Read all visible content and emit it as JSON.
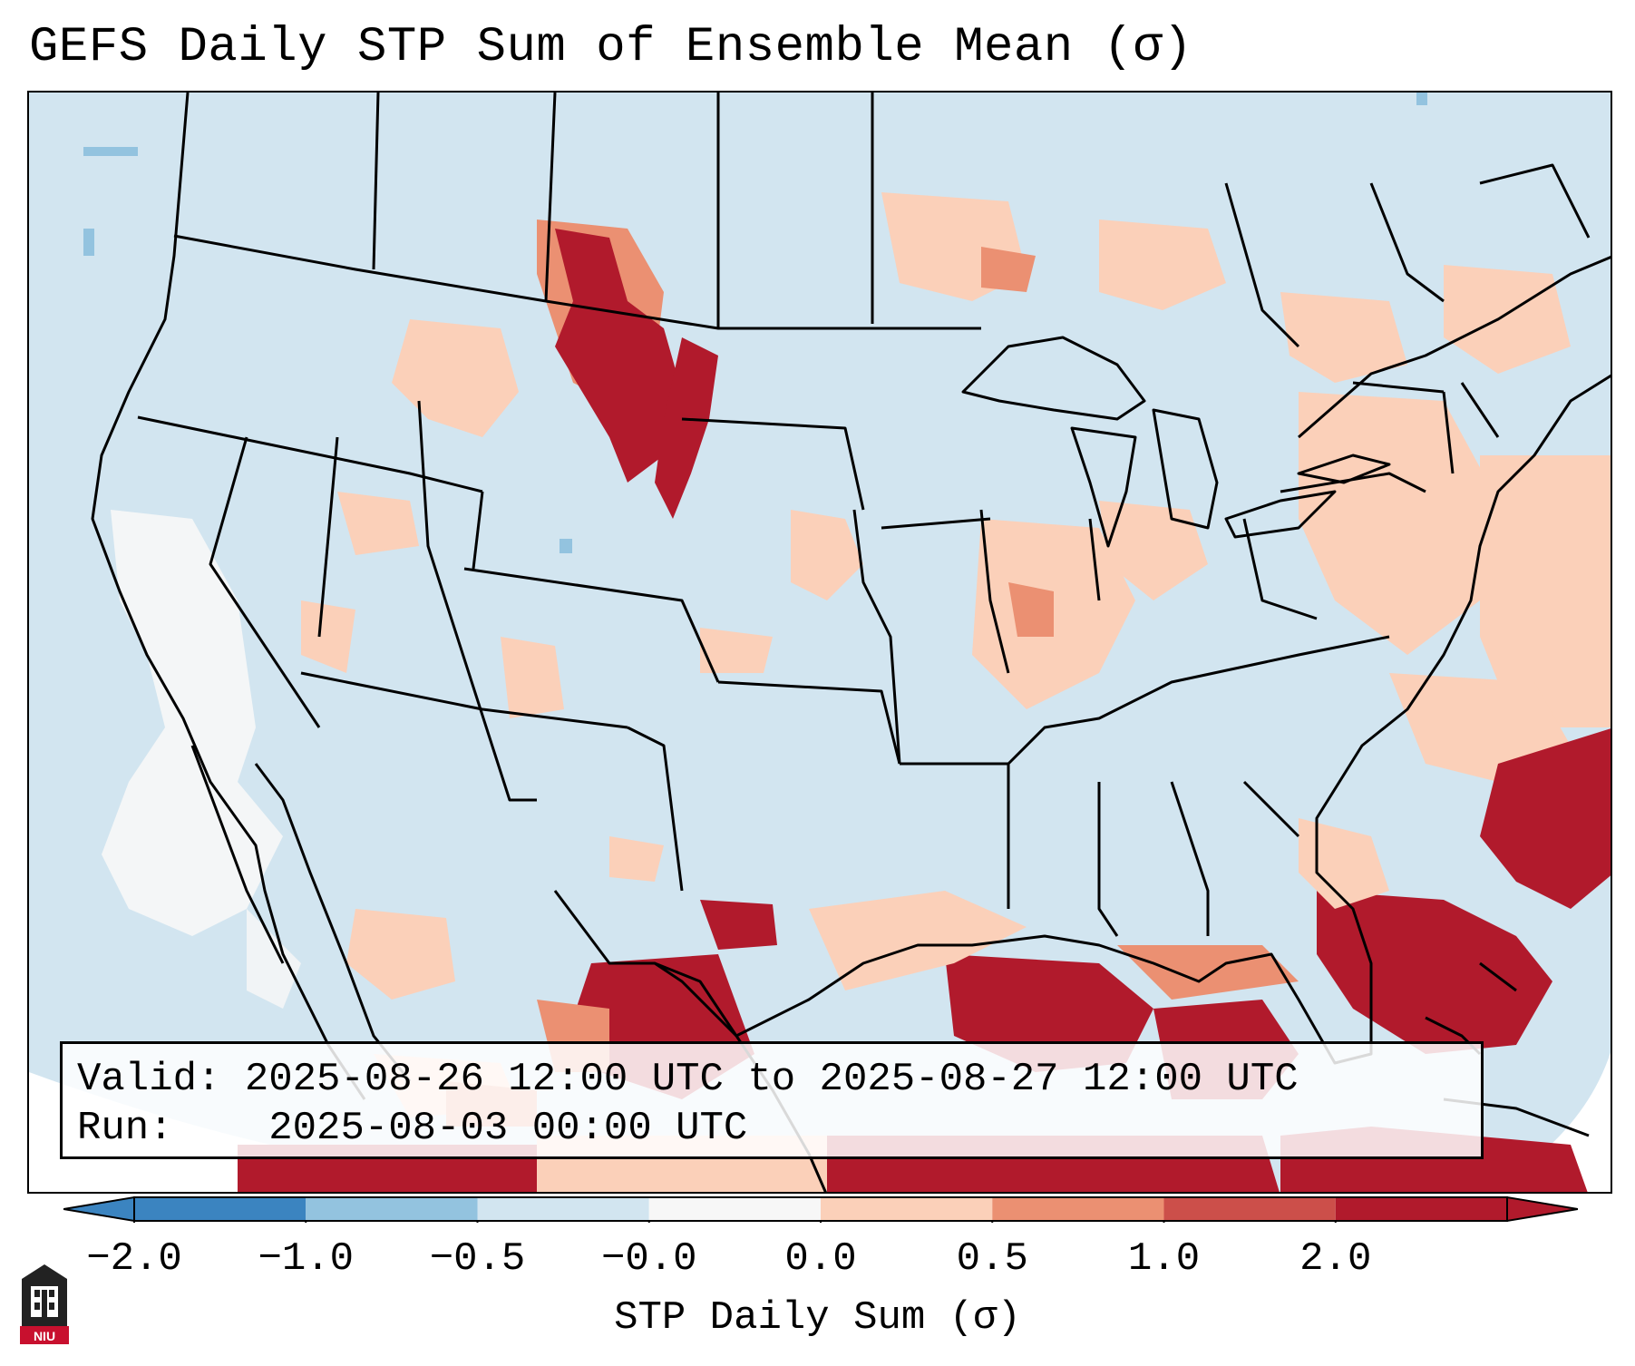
{
  "title": "GEFS Daily STP Sum of Ensemble Mean (σ)",
  "info": {
    "valid_label": "Valid:",
    "valid_value": "2025-08-26 12:00 UTC to 2025-08-27 12:00 UTC",
    "run_label": "Run:",
    "run_value": "2025-08-03 00:00 UTC"
  },
  "colorbar": {
    "label": "STP Daily Sum (σ)",
    "ticks": [
      "−2.0",
      "−1.0",
      "−0.5",
      "−0.0",
      "0.0",
      "0.5",
      "1.0",
      "2.0"
    ],
    "colors": [
      "#3b84c0",
      "#93c3df",
      "#d2e5f0",
      "#f7f7f7",
      "#fbd0b9",
      "#eb9072",
      "#cc4f4a",
      "#b11a2c"
    ],
    "extend": "both"
  },
  "colors": {
    "ocean_land_base": "#d2e5f0",
    "neutral": "#f7f7f7",
    "light_red": "#fbd0b9",
    "mid_red": "#eb9072",
    "dark_red": "#b11a2c",
    "light_blue": "#93c3df"
  },
  "logo": {
    "text": "NIU",
    "icon": "university-building-icon"
  }
}
